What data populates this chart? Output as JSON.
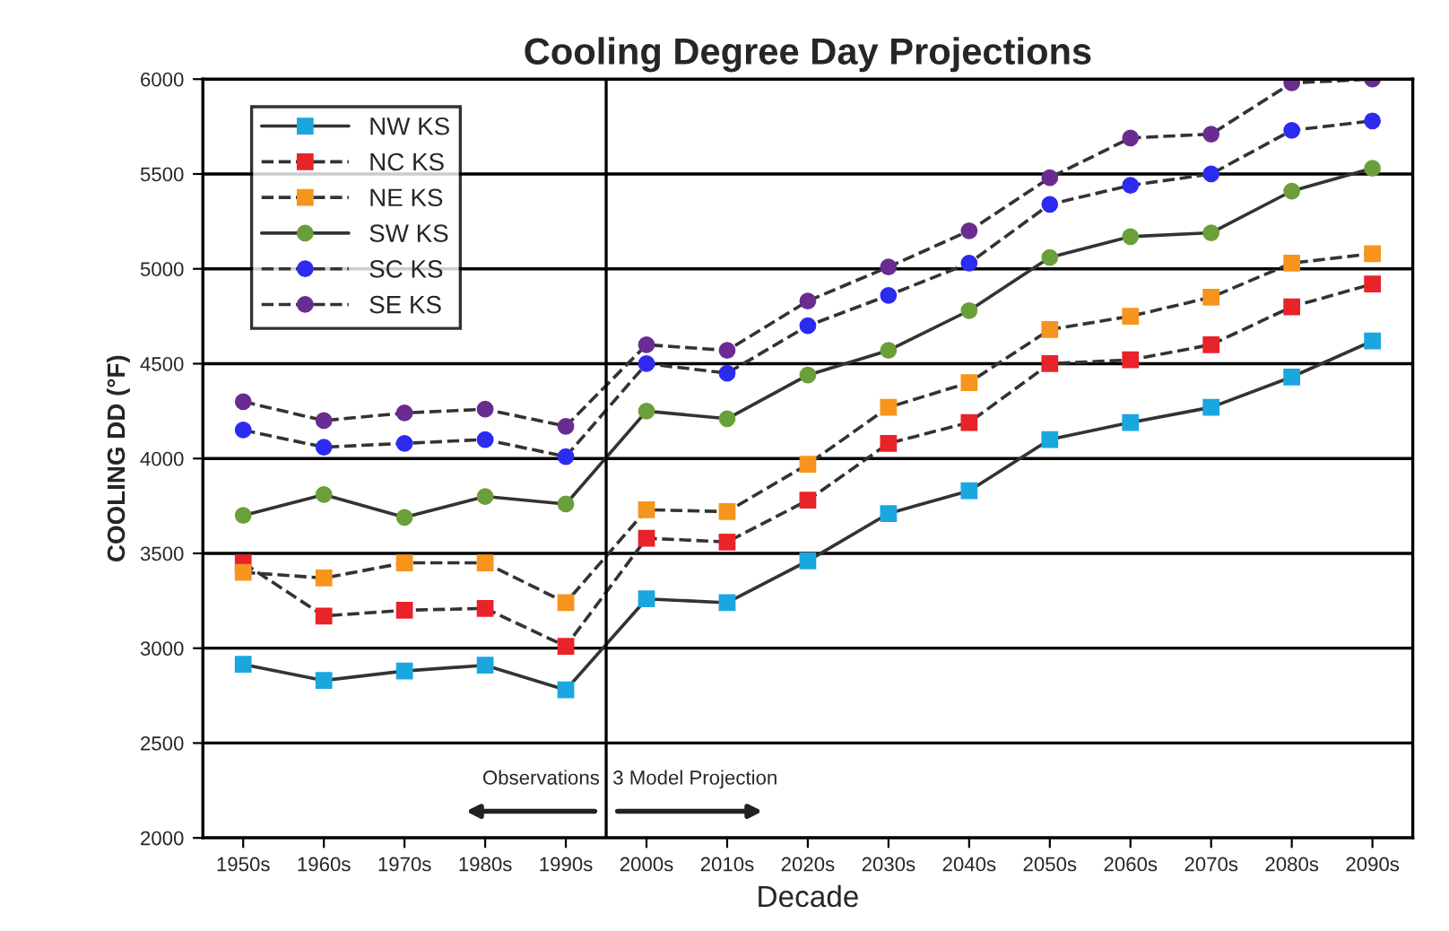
{
  "chart_data": {
    "type": "line",
    "title": "Cooling Degree Day Projections",
    "xlabel": "Decade",
    "ylabel": "COOLING DD (°F)",
    "x": [
      1950,
      1960,
      1970,
      1980,
      1990,
      2000,
      2010,
      2020,
      2030,
      2040,
      2050,
      2060,
      2070,
      2080,
      2090
    ],
    "xlim": [
      1945,
      2095
    ],
    "xticks": [
      {
        "value": 1950,
        "label": "1950s"
      },
      {
        "value": 1960,
        "label": "1960s"
      },
      {
        "value": 1970,
        "label": "1970s"
      },
      {
        "value": 1980,
        "label": "1980s"
      },
      {
        "value": 1990,
        "label": "1990s"
      },
      {
        "value": 2000,
        "label": "2000s"
      },
      {
        "value": 2010,
        "label": "2010s"
      },
      {
        "value": 2020,
        "label": "2020s"
      },
      {
        "value": 2030,
        "label": "2030s"
      },
      {
        "value": 2040,
        "label": "2040s"
      },
      {
        "value": 2050,
        "label": "2050s"
      },
      {
        "value": 2060,
        "label": "2060s"
      },
      {
        "value": 2070,
        "label": "2070s"
      },
      {
        "value": 2080,
        "label": "2080s"
      },
      {
        "value": 2090,
        "label": "2090s"
      }
    ],
    "ylim": [
      2000,
      6000
    ],
    "yticks": [
      2000,
      2500,
      3000,
      3500,
      4000,
      4500,
      5000,
      5500,
      6000
    ],
    "grid": "y",
    "legend": "top left",
    "series": [
      {
        "name": "NW KS",
        "color": "#1aa7e0",
        "marker": "square",
        "line_style": "solid",
        "values": [
          2915,
          2830,
          2880,
          2910,
          2780,
          3260,
          3240,
          3460,
          3710,
          3830,
          4100,
          4190,
          4270,
          4430,
          4620
        ]
      },
      {
        "name": "NC KS",
        "color": "#e8232a",
        "marker": "square",
        "line_style": "dashed",
        "values": [
          3450,
          3170,
          3200,
          3210,
          3010,
          3580,
          3560,
          3780,
          4080,
          4190,
          4500,
          4520,
          4600,
          4800,
          4920
        ]
      },
      {
        "name": "NE KS",
        "color": "#f7941d",
        "marker": "square",
        "line_style": "dashed",
        "values": [
          3400,
          3370,
          3450,
          3450,
          3240,
          3730,
          3720,
          3970,
          4270,
          4400,
          4680,
          4750,
          4850,
          5030,
          5080
        ]
      },
      {
        "name": "SW KS",
        "color": "#6a9f3a",
        "marker": "circle",
        "line_style": "solid",
        "values": [
          3700,
          3810,
          3690,
          3800,
          3760,
          4250,
          4210,
          4440,
          4570,
          4780,
          5060,
          5170,
          5190,
          5410,
          5530
        ]
      },
      {
        "name": "SC KS",
        "color": "#2d2bf0",
        "marker": "circle",
        "line_style": "dashed",
        "values": [
          4150,
          4060,
          4080,
          4100,
          4010,
          4500,
          4450,
          4700,
          4860,
          5030,
          5340,
          5440,
          5500,
          5730,
          5780
        ]
      },
      {
        "name": "SE KS",
        "color": "#6a2c91",
        "marker": "circle",
        "line_style": "dashed",
        "values": [
          4300,
          4200,
          4240,
          4260,
          4170,
          4600,
          4570,
          4830,
          5010,
          5200,
          5480,
          5690,
          5710,
          5980,
          6000
        ]
      }
    ],
    "ref_lines": [
      {
        "axis": "x",
        "value": 1995,
        "color": "#000000",
        "line_style": "solid"
      }
    ],
    "annotations": [
      "Observations",
      "3 Model Projection"
    ]
  }
}
